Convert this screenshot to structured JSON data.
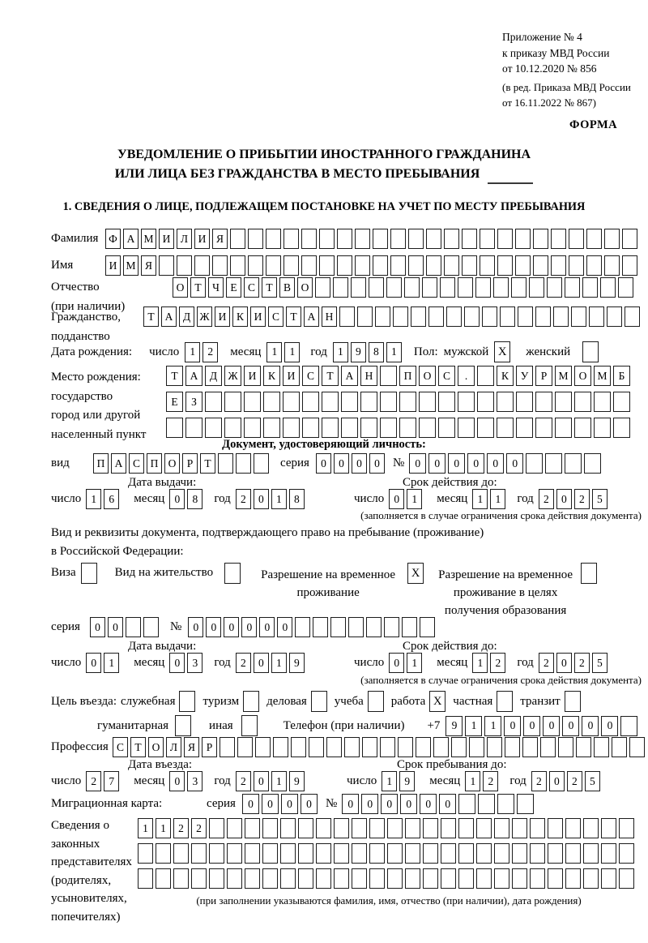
{
  "header": {
    "appendix_lines": [
      "Приложение № 4",
      "к приказу МВД России",
      "от 10.12.2020 № 856"
    ],
    "revision_lines": [
      "(в ред. Приказа МВД России",
      "от 16.11.2022 № 867)"
    ],
    "form_label": "ФОРМА"
  },
  "title": {
    "line1": "УВЕДОМЛЕНИЕ О ПРИБЫТИИ ИНОСТРАННОГО ГРАЖДАНИНА",
    "line2": "ИЛИ ЛИЦА БЕЗ ГРАЖДАНСТВА В МЕСТО ПРЕБЫВАНИЯ"
  },
  "section1_title": "1. СВЕДЕНИЯ О ЛИЦЕ, ПОДЛЕЖАЩЕМ ПОСТАНОВКЕ НА УЧЕТ ПО МЕСТУ ПРЕБЫВАНИЯ",
  "date_labels": {
    "day": "число",
    "month": "месяц",
    "year": "год"
  },
  "person": {
    "surname": {
      "label": "Фамилия",
      "boxes": {
        "len": 30,
        "value": "ФАМИЛИЯ"
      }
    },
    "given_name": {
      "label": "Имя",
      "boxes": {
        "len": 30,
        "value": "ИМЯ"
      }
    },
    "patronymic": {
      "label_line1": "Отчество",
      "label_line2": "(при наличии)",
      "boxes": {
        "len": 26,
        "value": "ОТЧЕСТВО"
      }
    },
    "citizenship": {
      "label_line1": "Гражданство,",
      "label_line2": "подданство",
      "boxes": {
        "len": 28,
        "value": "ТАДЖИКИСТАН"
      }
    },
    "birth_date": {
      "label": "Дата рождения:",
      "day": "12",
      "month": "11",
      "year": "1981"
    },
    "sex": {
      "label": "Пол:",
      "male_label": "мужской",
      "male_checked": true,
      "female_label": "женский",
      "female_checked": false
    },
    "birth_place": {
      "label_lines": [
        "Место рождения:",
        "государство",
        "город или другой",
        "населенный пункт"
      ],
      "rows": [
        {
          "len": 24,
          "value": "ТАДЖИКИСТАН ПОС. КУРМОМБ"
        },
        {
          "len": 24,
          "value": "ЕЗ"
        },
        {
          "len": 24,
          "value": ""
        }
      ]
    }
  },
  "identity_doc": {
    "section_title": "Документ, удостоверяющий личность:",
    "kind_label": "вид",
    "kind_boxes": {
      "len": 10,
      "value": "ПАСПОРТ"
    },
    "series_label": "серия",
    "series_boxes": {
      "len": 4,
      "value": "0000"
    },
    "number_label": "№",
    "number_boxes": {
      "len": 10,
      "value": "000000"
    },
    "issue_title": "Дата выдачи:",
    "issue": {
      "day": "16",
      "month": "08",
      "year": "2018"
    },
    "expiry_title": "Срок действия до:",
    "expiry": {
      "day": "01",
      "month": "11",
      "year": "2025"
    },
    "note": "(заполняется в случае ограничения срока действия документа)"
  },
  "residence_doc": {
    "intro_line1": "Вид и реквизиты документа, подтверждающего право на пребывание (проживание)",
    "intro_line2": "в Российской Федерации:",
    "options": [
      {
        "label": "Виза",
        "checked": false
      },
      {
        "label": "Вид на жительство",
        "checked": false
      },
      {
        "label": "Разрешение на временное проживание",
        "checked": true
      },
      {
        "label": "Разрешение на временное проживание в целях получения образования",
        "checked": false
      }
    ],
    "series_label": "серия",
    "series_boxes": {
      "len": 4,
      "value": "00"
    },
    "number_label": "№",
    "number_boxes": {
      "len": 14,
      "value": "000000"
    },
    "issue_title": "Дата выдачи:",
    "issue": {
      "day": "01",
      "month": "03",
      "year": "2019"
    },
    "expiry_title": "Срок действия до:",
    "expiry": {
      "day": "01",
      "month": "12",
      "year": "2025"
    },
    "note": "(заполняется в случае ограничения срока действия документа)"
  },
  "visit": {
    "purpose_label": "Цель въезда:",
    "purposes": [
      {
        "label": "служебная",
        "checked": false
      },
      {
        "label": "туризм",
        "checked": false
      },
      {
        "label": "деловая",
        "checked": false
      },
      {
        "label": "учеба",
        "checked": false
      },
      {
        "label": "работа",
        "checked": true
      },
      {
        "label": "частная",
        "checked": false
      },
      {
        "label": "транзит",
        "checked": false
      },
      {
        "label": "гуманитарная",
        "checked": false
      },
      {
        "label": "иная",
        "checked": false
      }
    ],
    "phone_label": "Телефон (при наличии)",
    "phone_prefix": "+7",
    "phone_boxes": {
      "len": 10,
      "value": "911000000"
    },
    "profession_label": "Профессия",
    "profession_boxes": {
      "len": 30,
      "value": "СТОЛЯР"
    },
    "entry_title": "Дата въезда:",
    "entry_date": {
      "day": "27",
      "month": "03",
      "year": "2019"
    },
    "stay_title": "Срок пребывания до:",
    "stay_until": {
      "day": "19",
      "month": "12",
      "year": "2025"
    },
    "migration_card_label": "Миграционная карта:",
    "mc_series_label": "серия",
    "mc_series_boxes": {
      "len": 4,
      "value": "0000"
    },
    "mc_number_label": "№",
    "mc_number_boxes": {
      "len": 10,
      "value": "000000"
    }
  },
  "representatives": {
    "label_lines": [
      "Сведения о",
      "законных",
      "представителях",
      "(родителях,",
      "усыновителях,",
      "попечителях)"
    ],
    "rows": [
      {
        "len": 28,
        "value": "1122"
      },
      {
        "len": 28,
        "value": ""
      },
      {
        "len": 28,
        "value": ""
      }
    ],
    "note": "(при заполнении указываются фамилия, имя, отчество (при наличии), дата рождения)"
  }
}
